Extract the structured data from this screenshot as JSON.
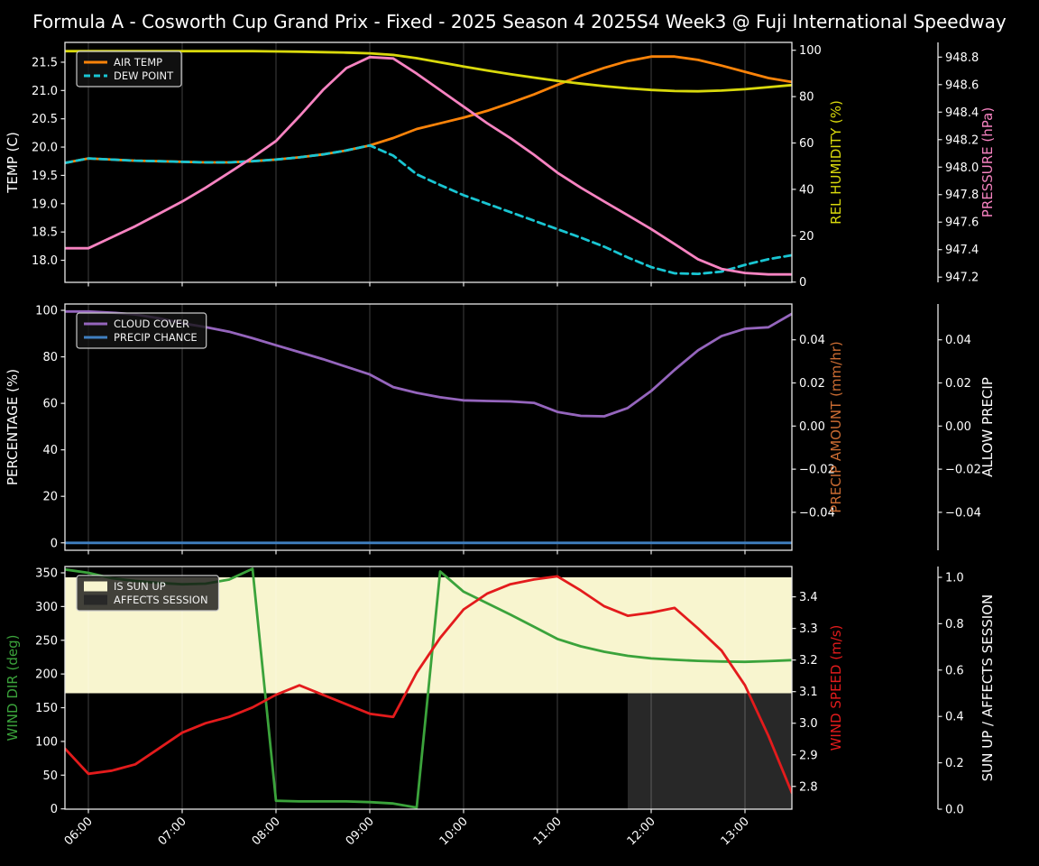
{
  "title": "Formula A - Cosworth Cup Grand Prix - Fixed - 2025 Season 4 2025S4 Week3 @ Fuji International Speedway",
  "style": {
    "background": "#000000",
    "text": "#ffffff",
    "frame": "#e8e8e8",
    "grid": "rgba(255,255,255,0.25)",
    "legend_bg": "rgba(20,20,20,0.8)",
    "legend_border": "#c8c8c8"
  },
  "time_axis": {
    "start": 5.75,
    "end": 13.5,
    "times": [
      5.75,
      6,
      6.25,
      6.5,
      6.75,
      7,
      7.25,
      7.5,
      7.75,
      8,
      8.25,
      8.5,
      8.75,
      9,
      9.25,
      9.5,
      9.75,
      10,
      10.25,
      10.5,
      10.75,
      11,
      11.25,
      11.5,
      11.75,
      12,
      12.25,
      12.5,
      12.75,
      13,
      13.25,
      13.5
    ],
    "tick_hours": [
      6,
      7,
      8,
      9,
      10,
      11,
      12,
      13
    ],
    "tick_labels": [
      "06:00",
      "07:00",
      "08:00",
      "09:00",
      "10:00",
      "11:00",
      "12:00",
      "13:00"
    ]
  },
  "chart_data": [
    {
      "type": "line",
      "name": "temperature",
      "show_x_labels": false,
      "left_axis": {
        "label": "TEMP (C)",
        "color": "#ffffff",
        "range": [
          17.61,
          21.85
        ],
        "ticks": [
          [
            18,
            "18.0"
          ],
          [
            18.5,
            "18.5"
          ],
          [
            19,
            "19.0"
          ],
          [
            19.5,
            "19.5"
          ],
          [
            20,
            "20.0"
          ],
          [
            20.5,
            "20.5"
          ],
          [
            21,
            "21.0"
          ],
          [
            21.5,
            "21.5"
          ]
        ]
      },
      "right_axis1": {
        "label": "REL HUMIDITY (%)",
        "color": "#d9d90c",
        "range": [
          -0.11,
          103.39
        ],
        "ticks": [
          [
            0,
            "0"
          ],
          [
            20,
            "20"
          ],
          [
            40,
            "40"
          ],
          [
            60,
            "60"
          ],
          [
            80,
            "80"
          ],
          [
            100,
            "100"
          ]
        ]
      },
      "right_axis2": {
        "label": "PRESSURE (hPa)",
        "color": "#f783c1",
        "range": [
          947.162,
          948.907
        ],
        "ticks": [
          [
            947.2,
            "947.2"
          ],
          [
            947.4,
            "947.4"
          ],
          [
            947.6,
            "947.6"
          ],
          [
            947.8,
            "947.8"
          ],
          [
            948,
            "948.0"
          ],
          [
            948.2,
            "948.2"
          ],
          [
            948.4,
            "948.4"
          ],
          [
            948.6,
            "948.6"
          ],
          [
            948.8,
            "948.8"
          ]
        ]
      },
      "series": [
        {
          "name": "AIR TEMP",
          "axis": "left",
          "color": "#fb8309",
          "dash": false,
          "values": [
            19.72,
            19.8,
            19.78,
            19.76,
            19.75,
            19.74,
            19.73,
            19.73,
            19.75,
            19.78,
            19.82,
            19.87,
            19.94,
            20.03,
            20.16,
            20.32,
            20.42,
            20.52,
            20.64,
            20.78,
            20.93,
            21.1,
            21.26,
            21.4,
            21.52,
            21.6,
            21.6,
            21.54,
            21.44,
            21.33,
            21.22,
            21.15
          ]
        },
        {
          "name": "DEW POINT",
          "axis": "left",
          "color": "#19c5d2",
          "dash": true,
          "values": [
            19.72,
            19.8,
            19.78,
            19.76,
            19.75,
            19.74,
            19.73,
            19.73,
            19.75,
            19.78,
            19.82,
            19.87,
            19.94,
            20.03,
            19.85,
            19.52,
            19.33,
            19.15,
            19.0,
            18.85,
            18.7,
            18.55,
            18.4,
            18.24,
            18.05,
            17.88,
            17.77,
            17.76,
            17.8,
            17.92,
            18.02,
            18.09
          ]
        },
        {
          "name": "REL HUMIDITY",
          "axis": "right1",
          "color": "#d9d90c",
          "dash": false,
          "values": [
            99.6,
            99.6,
            99.6,
            99.6,
            99.6,
            99.6,
            99.6,
            99.6,
            99.6,
            99.5,
            99.4,
            99.2,
            99.0,
            98.7,
            98.0,
            96.6,
            94.8,
            93.0,
            91.3,
            89.7,
            88.2,
            86.8,
            85.6,
            84.5,
            83.6,
            82.9,
            82.4,
            82.3,
            82.6,
            83.2,
            84.1,
            85.0
          ]
        },
        {
          "name": "PRESSURE",
          "axis": "right2",
          "color": "#f783c1",
          "dash": false,
          "values": [
            947.41,
            947.41,
            947.49,
            947.57,
            947.66,
            947.75,
            947.85,
            947.96,
            948.07,
            948.19,
            948.37,
            948.56,
            948.72,
            948.8,
            948.79,
            948.68,
            948.56,
            948.44,
            948.32,
            948.21,
            948.09,
            947.96,
            947.85,
            947.75,
            947.65,
            947.55,
            947.44,
            947.33,
            947.26,
            947.23,
            947.22,
            947.22
          ]
        }
      ],
      "legend": {
        "under_series": false,
        "items": [
          {
            "label": "AIR TEMP",
            "swatch": "line",
            "color": "#fb8309",
            "dash": false
          },
          {
            "label": "DEW POINT",
            "swatch": "line",
            "color": "#19c5d2",
            "dash": true
          }
        ]
      }
    },
    {
      "type": "line",
      "name": "precipitation",
      "show_x_labels": false,
      "left_axis": {
        "label": "PERCENTAGE (%)",
        "color": "#ffffff",
        "range": [
          -3.2,
          102.72
        ],
        "ticks": [
          [
            0,
            "0"
          ],
          [
            20,
            "20"
          ],
          [
            40,
            "40"
          ],
          [
            60,
            "60"
          ],
          [
            80,
            "80"
          ],
          [
            100,
            "100"
          ]
        ]
      },
      "right_axis1": {
        "label": "PRECIP AMOUNT (mm/hr)",
        "color": "#ca6b32",
        "range": [
          -0.0576,
          0.0566
        ],
        "ticks": [
          [
            0.04,
            "0.04"
          ],
          [
            0.02,
            "0.02"
          ],
          [
            0,
            "0.00"
          ],
          [
            -0.02,
            "−0.02"
          ],
          [
            -0.04,
            "−0.04"
          ]
        ]
      },
      "right_axis2": {
        "label": "ALLOW PRECIP",
        "color": "#ffffff",
        "range": [
          -0.0576,
          0.0566
        ],
        "ticks": [
          [
            0.04,
            "0.04"
          ],
          [
            0.02,
            "0.02"
          ],
          [
            0,
            "0.00"
          ],
          [
            -0.02,
            "−0.02"
          ],
          [
            -0.04,
            "−0.04"
          ]
        ]
      },
      "series": [
        {
          "name": "CLOUD COVER",
          "axis": "left",
          "color": "#9565bd",
          "dash": false,
          "values": [
            99.5,
            99.5,
            99.0,
            98.2,
            96.6,
            94.5,
            92.8,
            90.8,
            88.0,
            85.0,
            82.0,
            79.0,
            75.7,
            72.4,
            67.0,
            64.5,
            62.6,
            61.3,
            61.0,
            60.8,
            60.2,
            56.3,
            54.6,
            54.4,
            58.0,
            65.3,
            74.4,
            82.8,
            88.9,
            92.1,
            92.7,
            98.5
          ]
        },
        {
          "name": "PRECIP CHANCE",
          "axis": "left",
          "color": "#3f7fc1",
          "dash": false,
          "values": [
            0,
            0,
            0,
            0,
            0,
            0,
            0,
            0,
            0,
            0,
            0,
            0,
            0,
            0,
            0,
            0,
            0,
            0,
            0,
            0,
            0,
            0,
            0,
            0,
            0,
            0,
            0,
            0,
            0,
            0,
            0,
            0
          ]
        }
      ],
      "legend": {
        "under_series": false,
        "items": [
          {
            "label": "CLOUD COVER",
            "swatch": "line",
            "color": "#9565bd",
            "dash": false
          },
          {
            "label": "PRECIP CHANCE",
            "swatch": "line",
            "color": "#3f7fc1",
            "dash": false
          }
        ]
      }
    },
    {
      "type": "line",
      "name": "wind-sun",
      "show_x_labels": true,
      "left_axis": {
        "label": "WIND DIR (deg)",
        "color": "#3ba33b",
        "range": [
          -0.44,
          359.36
        ],
        "ticks": [
          [
            0,
            "0"
          ],
          [
            50,
            "50"
          ],
          [
            100,
            "100"
          ],
          [
            150,
            "150"
          ],
          [
            200,
            "200"
          ],
          [
            250,
            "250"
          ],
          [
            300,
            "300"
          ],
          [
            350,
            "350"
          ]
        ]
      },
      "right_axis1": {
        "label": "WIND SPEED (m/s)",
        "color": "#e31b1c",
        "range": [
          2.728,
          3.496
        ],
        "ticks": [
          [
            2.8,
            "2.8"
          ],
          [
            2.9,
            "2.9"
          ],
          [
            3,
            "3.0"
          ],
          [
            3.1,
            "3.1"
          ],
          [
            3.2,
            "3.2"
          ],
          [
            3.3,
            "3.3"
          ],
          [
            3.4,
            "3.4"
          ]
        ]
      },
      "right_axis2": {
        "label": "SUN UP / AFFECTS SESSION",
        "color": "#ffffff",
        "range": [
          0,
          1.0467
        ],
        "ticks": [
          [
            0,
            "0.0"
          ],
          [
            0.2,
            "0.2"
          ],
          [
            0.4,
            "0.4"
          ],
          [
            0.6,
            "0.6"
          ],
          [
            0.8,
            "0.8"
          ],
          [
            1,
            "1.0"
          ]
        ]
      },
      "bands": [
        {
          "label": "IS SUN UP",
          "color": "#f8f5cf",
          "t0": 5.75,
          "t1": 13.5,
          "v0": 0.5,
          "v1": 1.0
        },
        {
          "label": "AFFECTS SESSION",
          "color": "#282828",
          "t0": 11.75,
          "t1": 13.5,
          "v0": 0.0,
          "v1": 0.5
        }
      ],
      "series": [
        {
          "name": "WIND DIR",
          "axis": "left",
          "color": "#3ba33b",
          "dash": false,
          "values": [
            355,
            350,
            342,
            338,
            335,
            333,
            334,
            340,
            356,
            12,
            11,
            11,
            11,
            10,
            8,
            2,
            352,
            322,
            305,
            288,
            270,
            252,
            241,
            233,
            227,
            223,
            221,
            219.5,
            218.5,
            218,
            219,
            220.5
          ]
        },
        {
          "name": "WIND SPEED",
          "axis": "right1",
          "color": "#e31b1c",
          "dash": false,
          "values": [
            2.92,
            2.84,
            2.85,
            2.87,
            2.92,
            2.97,
            3.0,
            3.02,
            3.05,
            3.09,
            3.12,
            3.09,
            3.06,
            3.03,
            3.02,
            3.16,
            3.27,
            3.36,
            3.41,
            3.44,
            3.455,
            3.465,
            3.42,
            3.37,
            3.34,
            3.35,
            3.365,
            3.3,
            3.23,
            3.12,
            2.96,
            2.78
          ]
        }
      ],
      "legend": {
        "under_series": true,
        "items": [
          {
            "label": "IS SUN UP",
            "swatch": "patch",
            "color": "#f8f5cf",
            "dash": false
          },
          {
            "label": "AFFECTS SESSION",
            "swatch": "patch",
            "color": "#282828",
            "dash": false
          }
        ]
      }
    }
  ]
}
